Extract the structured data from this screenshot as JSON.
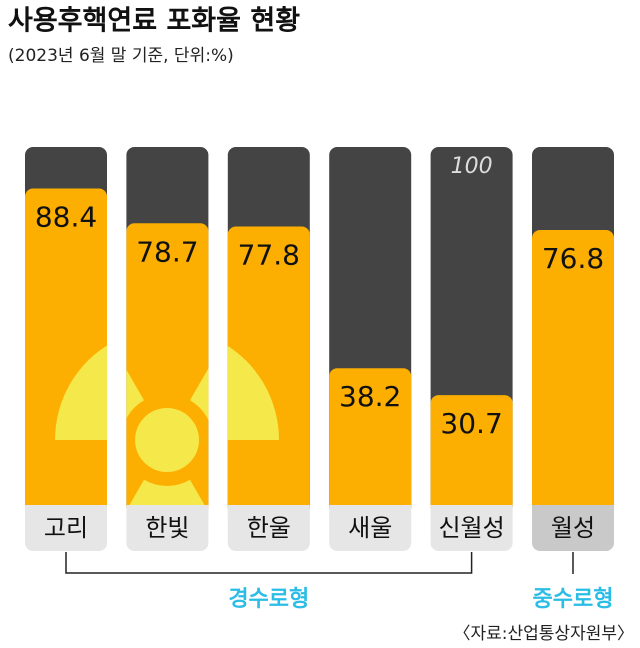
{
  "chart_data": {
    "type": "bar",
    "title": "사용후핵연료 포화율 현황",
    "subtitle": "(2023년 6월 말 기준, 단위:%)",
    "categories": [
      "고리",
      "한빛",
      "한울",
      "새울",
      "신월성",
      "월성"
    ],
    "values": [
      88.4,
      78.7,
      77.8,
      38.2,
      30.7,
      76.8
    ],
    "capacity": 100,
    "color": "#fcaf00",
    "ylim": [
      0,
      100
    ],
    "groups": [
      "경수로형",
      "중수로형"
    ],
    "source": "〈자료:산업통상자원부〉"
  }
}
